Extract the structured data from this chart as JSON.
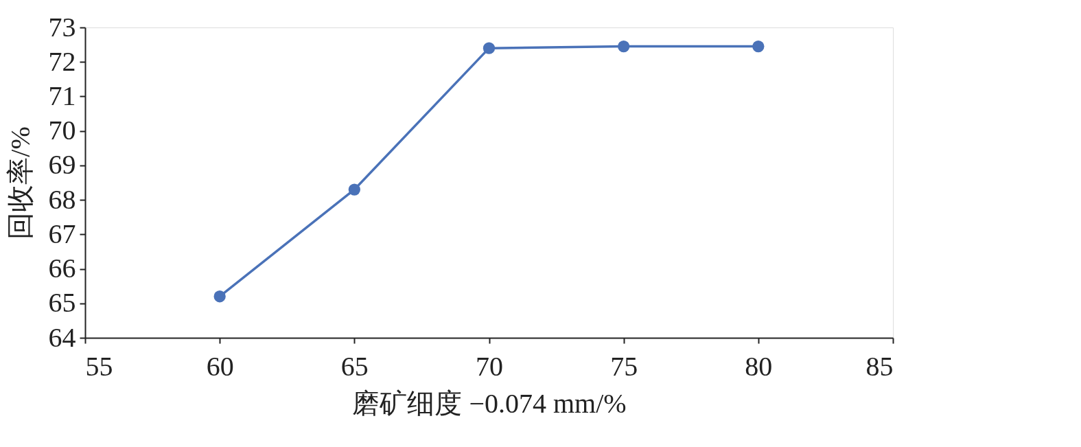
{
  "chart_data": {
    "type": "line",
    "xlabel": "磨矿细度 −0.074 mm/%",
    "ylabel": "回收率/%",
    "x": [
      60,
      65,
      70,
      75,
      80
    ],
    "series": [
      {
        "color": "#4a72b8",
        "values": [
          65.2,
          68.3,
          72.4,
          72.45,
          72.45
        ]
      }
    ],
    "xlim": [
      55,
      85
    ],
    "xticks": [
      55,
      60,
      65,
      70,
      75,
      80,
      85
    ],
    "ylim": [
      64,
      73
    ],
    "yticks": [
      64,
      65,
      66,
      67,
      68,
      69,
      70,
      71,
      72,
      73
    ],
    "grid": false,
    "legend": false,
    "marker": "circle",
    "line_style": "solid"
  }
}
